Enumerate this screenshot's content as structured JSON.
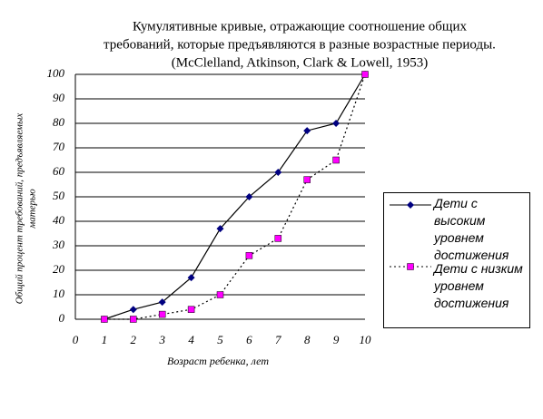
{
  "chart_data": {
    "type": "line",
    "title_lines": [
      "Кумулятивные кривые, отражающие соотношение общих",
      "требований, которые предъявляются в разные возрастные периоды.",
      "(McClelland, Atkinson, Clark & Lowell, 1953)"
    ],
    "y_label_lines": [
      "Общий процент требований, предъявляемых",
      "матерью"
    ],
    "x_label": "Возраст ребенка, лет",
    "x": [
      1,
      2,
      3,
      4,
      5,
      6,
      7,
      8,
      9,
      10
    ],
    "series": [
      {
        "name": "Дети с высоким уровнем достижения",
        "color": "#000080",
        "line_color": "#000000",
        "line_style": "solid",
        "marker": "diamond",
        "values": [
          0,
          4,
          7,
          17,
          37,
          50,
          60,
          77,
          80,
          100
        ]
      },
      {
        "name": "Дети с низким уровнем достижения",
        "color": "#ff00ff",
        "line_color": "#000000",
        "line_style": "dotted",
        "marker": "square",
        "values": [
          0,
          0,
          2,
          4,
          10,
          26,
          33,
          57,
          65,
          100
        ]
      }
    ],
    "xlim": [
      0,
      10
    ],
    "xticks": [
      0,
      1,
      2,
      3,
      4,
      5,
      6,
      7,
      8,
      9,
      10
    ],
    "ylim": [
      0,
      100
    ],
    "yticks": [
      0,
      10,
      20,
      30,
      40,
      50,
      60,
      70,
      80,
      90,
      100
    ],
    "grid": true,
    "legend": "right"
  }
}
